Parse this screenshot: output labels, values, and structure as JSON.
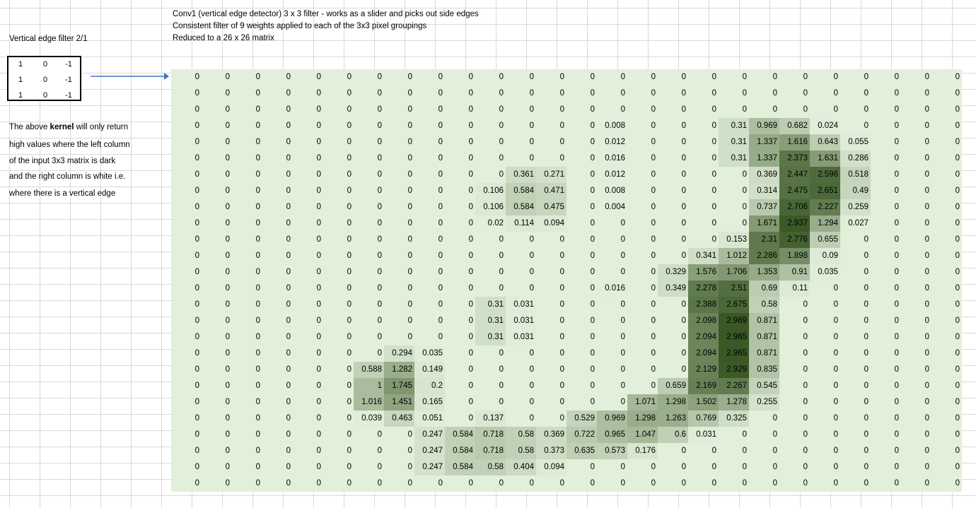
{
  "header": {
    "line1": "Conv1 (vertical edge detector) 3 x 3 filter - works as a slider and picks out side edges",
    "line2": "Consistent filter of 9 weights applied to each of the 3x3 pixel groupings",
    "line3": "Reduced to a 26 x 26 matrix"
  },
  "filter_title": "Vertical edge filter 2/1",
  "kernel": [
    [
      "1",
      "0",
      "-1"
    ],
    [
      "1",
      "0",
      "-1"
    ],
    [
      "1",
      "0",
      "-1"
    ]
  ],
  "description": {
    "line1_pre": "The above ",
    "line1_bold": "kernel",
    "line1_post": " will only return",
    "line2": "high values where the left column",
    "line3": "of the input 3x3 matrix is dark",
    "line4": "and the right column is white i.e.",
    "line5": "where there is a vertical edge"
  },
  "colors": {
    "matrix_bg": "#e2efda",
    "arrow": "#4472c4",
    "heat_high": "#375623"
  },
  "matrix": [
    [
      "0",
      "0",
      "0",
      "0",
      "0",
      "0",
      "0",
      "0",
      "0",
      "0",
      "0",
      "0",
      "0",
      "0",
      "0",
      "0",
      "0",
      "0",
      "0",
      "0",
      "0",
      "0",
      "0",
      "0",
      "0",
      "0"
    ],
    [
      "0",
      "0",
      "0",
      "0",
      "0",
      "0",
      "0",
      "0",
      "0",
      "0",
      "0",
      "0",
      "0",
      "0",
      "0",
      "0",
      "0",
      "0",
      "0",
      "0",
      "0",
      "0",
      "0",
      "0",
      "0",
      "0"
    ],
    [
      "0",
      "0",
      "0",
      "0",
      "0",
      "0",
      "0",
      "0",
      "0",
      "0",
      "0",
      "0",
      "0",
      "0",
      "0",
      "0",
      "0",
      "0",
      "0",
      "0",
      "0",
      "0",
      "0",
      "0",
      "0",
      "0"
    ],
    [
      "0",
      "0",
      "0",
      "0",
      "0",
      "0",
      "0",
      "0",
      "0",
      "0",
      "0",
      "0",
      "0",
      "0",
      "0.008",
      "0",
      "0",
      "0",
      "0.31",
      "0.969",
      "0.682",
      "0.024",
      "0",
      "0",
      "0",
      "0"
    ],
    [
      "0",
      "0",
      "0",
      "0",
      "0",
      "0",
      "0",
      "0",
      "0",
      "0",
      "0",
      "0",
      "0",
      "0",
      "0.012",
      "0",
      "0",
      "0",
      "0.31",
      "1.337",
      "1.616",
      "0.643",
      "0.055",
      "0",
      "0",
      "0"
    ],
    [
      "0",
      "0",
      "0",
      "0",
      "0",
      "0",
      "0",
      "0",
      "0",
      "0",
      "0",
      "0",
      "0",
      "0",
      "0.016",
      "0",
      "0",
      "0",
      "0.31",
      "1.337",
      "2.373",
      "1.631",
      "0.286",
      "0",
      "0",
      "0"
    ],
    [
      "0",
      "0",
      "0",
      "0",
      "0",
      "0",
      "0",
      "0",
      "0",
      "0",
      "0",
      "0.361",
      "0.271",
      "0",
      "0.012",
      "0",
      "0",
      "0",
      "0",
      "0.369",
      "2.447",
      "2.596",
      "0.518",
      "0",
      "0",
      "0"
    ],
    [
      "0",
      "0",
      "0",
      "0",
      "0",
      "0",
      "0",
      "0",
      "0",
      "0",
      "0.106",
      "0.584",
      "0.471",
      "0",
      "0.008",
      "0",
      "0",
      "0",
      "0",
      "0.314",
      "2.475",
      "2.651",
      "0.49",
      "0",
      "0",
      "0"
    ],
    [
      "0",
      "0",
      "0",
      "0",
      "0",
      "0",
      "0",
      "0",
      "0",
      "0",
      "0.106",
      "0.584",
      "0.475",
      "0",
      "0.004",
      "0",
      "0",
      "0",
      "0",
      "0.737",
      "2.706",
      "2.227",
      "0.259",
      "0",
      "0",
      "0"
    ],
    [
      "0",
      "0",
      "0",
      "0",
      "0",
      "0",
      "0",
      "0",
      "0",
      "0",
      "0.02",
      "0.114",
      "0.094",
      "0",
      "0",
      "0",
      "0",
      "0",
      "0",
      "1.671",
      "2.937",
      "1.294",
      "0.027",
      "0",
      "0",
      "0"
    ],
    [
      "0",
      "0",
      "0",
      "0",
      "0",
      "0",
      "0",
      "0",
      "0",
      "0",
      "0",
      "0",
      "0",
      "0",
      "0",
      "0",
      "0",
      "0",
      "0.153",
      "2.31",
      "2.776",
      "0.655",
      "0",
      "0",
      "0",
      "0"
    ],
    [
      "0",
      "0",
      "0",
      "0",
      "0",
      "0",
      "0",
      "0",
      "0",
      "0",
      "0",
      "0",
      "0",
      "0",
      "0",
      "0",
      "0",
      "0.341",
      "1.012",
      "2.286",
      "1.898",
      "0.09",
      "0",
      "0",
      "0",
      "0"
    ],
    [
      "0",
      "0",
      "0",
      "0",
      "0",
      "0",
      "0",
      "0",
      "0",
      "0",
      "0",
      "0",
      "0",
      "0",
      "0",
      "0",
      "0.329",
      "1.576",
      "1.706",
      "1.353",
      "0.91",
      "0.035",
      "0",
      "0",
      "0",
      "0"
    ],
    [
      "0",
      "0",
      "0",
      "0",
      "0",
      "0",
      "0",
      "0",
      "0",
      "0",
      "0",
      "0",
      "0",
      "0",
      "0.016",
      "0",
      "0.349",
      "2.278",
      "2.51",
      "0.69",
      "0.11",
      "0",
      "0",
      "0",
      "0",
      "0"
    ],
    [
      "0",
      "0",
      "0",
      "0",
      "0",
      "0",
      "0",
      "0",
      "0",
      "0",
      "0.31",
      "0.031",
      "0",
      "0",
      "0",
      "0",
      "0",
      "2.388",
      "2.675",
      "0.58",
      "0",
      "0",
      "0",
      "0",
      "0",
      "0"
    ],
    [
      "0",
      "0",
      "0",
      "0",
      "0",
      "0",
      "0",
      "0",
      "0",
      "0",
      "0.31",
      "0.031",
      "0",
      "0",
      "0",
      "0",
      "0",
      "2.098",
      "2.969",
      "0.871",
      "0",
      "0",
      "0",
      "0",
      "0",
      "0"
    ],
    [
      "0",
      "0",
      "0",
      "0",
      "0",
      "0",
      "0",
      "0",
      "0",
      "0",
      "0.31",
      "0.031",
      "0",
      "0",
      "0",
      "0",
      "0",
      "2.094",
      "2.965",
      "0.871",
      "0",
      "0",
      "0",
      "0",
      "0",
      "0"
    ],
    [
      "0",
      "0",
      "0",
      "0",
      "0",
      "0",
      "0",
      "0.294",
      "0.035",
      "0",
      "0",
      "0",
      "0",
      "0",
      "0",
      "0",
      "0",
      "2.094",
      "2.965",
      "0.871",
      "0",
      "0",
      "0",
      "0",
      "0",
      "0"
    ],
    [
      "0",
      "0",
      "0",
      "0",
      "0",
      "0",
      "0.588",
      "1.282",
      "0.149",
      "0",
      "0",
      "0",
      "0",
      "0",
      "0",
      "0",
      "0",
      "2.129",
      "2.929",
      "0.835",
      "0",
      "0",
      "0",
      "0",
      "0",
      "0"
    ],
    [
      "0",
      "0",
      "0",
      "0",
      "0",
      "0",
      "1",
      "1.745",
      "0.2",
      "0",
      "0",
      "0",
      "0",
      "0",
      "0",
      "0",
      "0.659",
      "2.169",
      "2.267",
      "0.545",
      "0",
      "0",
      "0",
      "0",
      "0",
      "0"
    ],
    [
      "0",
      "0",
      "0",
      "0",
      "0",
      "0",
      "1.016",
      "1.451",
      "0.165",
      "0",
      "0",
      "0",
      "0",
      "0",
      "0",
      "1.071",
      "1.298",
      "1.502",
      "1.278",
      "0.255",
      "0",
      "0",
      "0",
      "0",
      "0",
      "0"
    ],
    [
      "0",
      "0",
      "0",
      "0",
      "0",
      "0",
      "0.039",
      "0.463",
      "0.051",
      "0",
      "0.137",
      "0",
      "0",
      "0.529",
      "0.969",
      "1.298",
      "1.263",
      "0.769",
      "0.325",
      "0",
      "0",
      "0",
      "0",
      "0",
      "0",
      "0"
    ],
    [
      "0",
      "0",
      "0",
      "0",
      "0",
      "0",
      "0",
      "0",
      "0.247",
      "0.584",
      "0.718",
      "0.58",
      "0.369",
      "0.722",
      "0.965",
      "1.047",
      "0.6",
      "0.031",
      "0",
      "0",
      "0",
      "0",
      "0",
      "0",
      "0",
      "0"
    ],
    [
      "0",
      "0",
      "0",
      "0",
      "0",
      "0",
      "0",
      "0",
      "0.247",
      "0.584",
      "0.718",
      "0.58",
      "0.373",
      "0.635",
      "0.573",
      "0.176",
      "0",
      "0",
      "0",
      "0",
      "0",
      "0",
      "0",
      "0",
      "0",
      "0"
    ],
    [
      "0",
      "0",
      "0",
      "0",
      "0",
      "0",
      "0",
      "0",
      "0.247",
      "0.584",
      "0.58",
      "0.404",
      "0.094",
      "0",
      "0",
      "0",
      "0",
      "0",
      "0",
      "0",
      "0",
      "0",
      "0",
      "0",
      "0",
      "0"
    ],
    [
      "0",
      "0",
      "0",
      "0",
      "0",
      "0",
      "0",
      "0",
      "0",
      "0",
      "0",
      "0",
      "0",
      "0",
      "0",
      "0",
      "0",
      "0",
      "0",
      "0",
      "0",
      "0",
      "0",
      "0",
      "0",
      "0"
    ]
  ]
}
